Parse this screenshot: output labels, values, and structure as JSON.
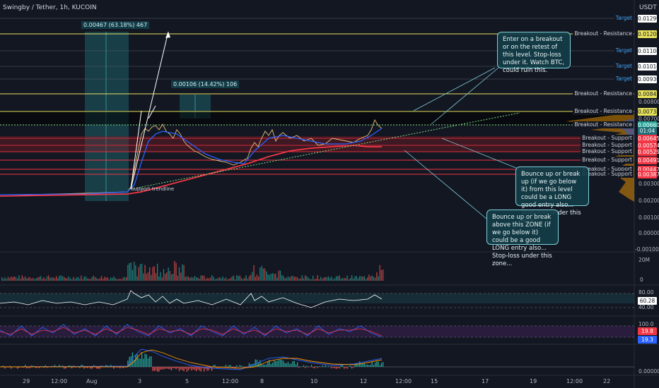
{
  "header": {
    "title": "Swingby / Tether, 1h, KUCOIN",
    "currency": "USDT"
  },
  "colors": {
    "bg": "#131722",
    "yellow": "#e8e25b",
    "red": "#f23645",
    "blue": "#2962ff",
    "teal": "#26a69a"
  },
  "levels": [
    {
      "label": "Target",
      "price": "0.01299",
      "kind": "target"
    },
    {
      "label": "Breakout - Resistance",
      "price": "0.01206",
      "kind": "resistance"
    },
    {
      "label": "Target",
      "price": "0.01106",
      "kind": "target"
    },
    {
      "label": "Target",
      "price": "0.01010",
      "kind": "target"
    },
    {
      "label": "Target",
      "price": "0.00936",
      "kind": "target"
    },
    {
      "label": "Breakout - Resistance",
      "price": "0.00843",
      "kind": "resistance"
    },
    {
      "label": "Breakout - Resistance",
      "price": "0.00738",
      "kind": "resistance"
    },
    {
      "label": "Breakout - Resistance",
      "price": "0.00660",
      "kind": "current"
    },
    {
      "label": "Breakout - Support",
      "price": "0.00645",
      "kind": "support"
    },
    {
      "label": "Breakout - Support",
      "price": "0.00574",
      "kind": "support"
    },
    {
      "label": "Breakout - Support",
      "price": "0.00529",
      "kind": "support"
    },
    {
      "label": "Breakout - Support",
      "price": "0.00491",
      "kind": "support"
    },
    {
      "label": "Breakout - Support",
      "price": "0.00447",
      "kind": "support"
    },
    {
      "label": "Breakout - Support",
      "price": "0.00387",
      "kind": "support"
    }
  ],
  "countdown": "01:04",
  "axis_prices": [
    "0.00800",
    "0.00700",
    "0.00300",
    "0.00200",
    "0.00100",
    "0.00000",
    "-0.00100"
  ],
  "measures": [
    {
      "text": "0.00467 (63.18%) 467"
    },
    {
      "text": "0.00106 (14.42%) 106"
    }
  ],
  "trendline_label": "Support trendline",
  "notes": [
    {
      "text": "Enter on a breakout or on the retest of this level. Stop-loss under it. Watch BTC, could ruin this."
    },
    {
      "text": "Bounce up or break up (if we go below it) from this level could be a LONG good entry also... Stop-loss under this level..."
    },
    {
      "text": "Bounce up or break above this ZONE (if we go below it) could be a good LONG entry also... Stop-loss under this zone..."
    }
  ],
  "volume_pane": {
    "top_label": "20M",
    "zero_label": "0"
  },
  "rsi_pane": {
    "upper": "80.00",
    "value": "60.28",
    "lower": "40.00"
  },
  "stoch_pane": {
    "upper": "100.0",
    "k": "19.8",
    "d": "19.3"
  },
  "macd_pane": {
    "zero_label": "0.00000"
  },
  "time_axis": [
    "29",
    "12:00",
    "Aug",
    "3",
    "5",
    "12:00",
    "8",
    "10",
    "12",
    "12:00",
    "15",
    "17",
    "19",
    "12:00",
    "22"
  ]
}
